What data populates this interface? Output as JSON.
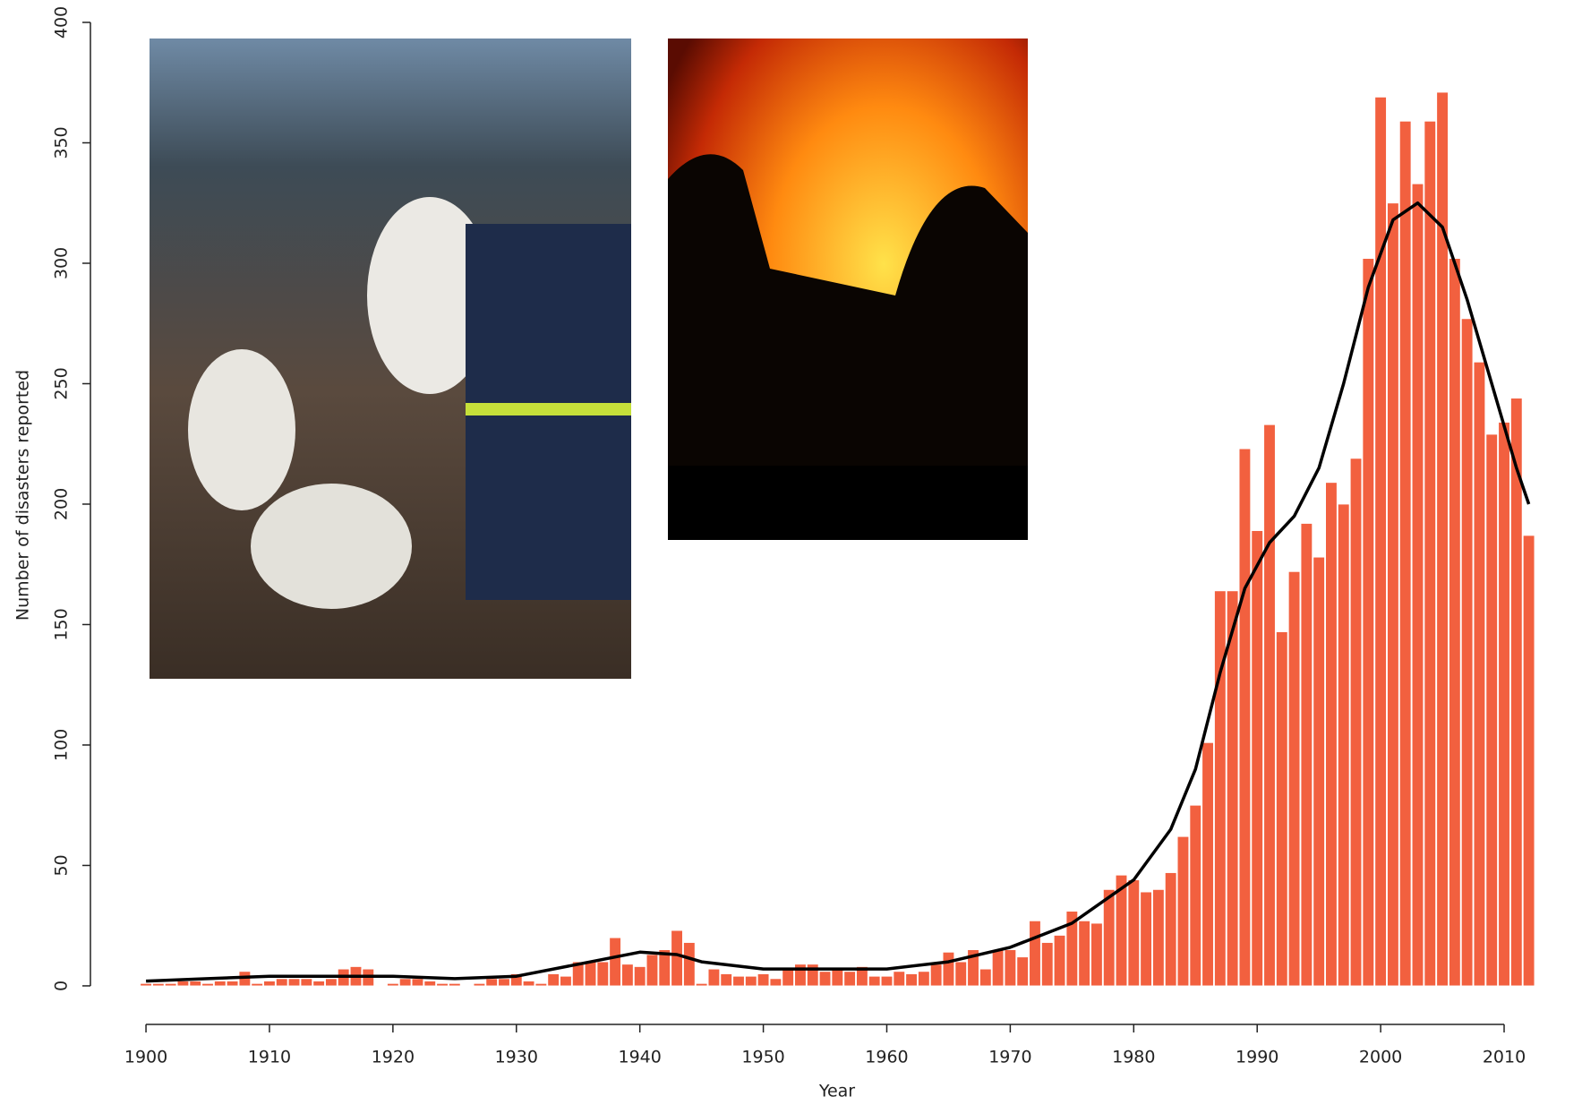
{
  "chart_data": {
    "type": "bar",
    "xlabel": "Year",
    "ylabel": "Number of disasters reported",
    "color": "#f2603f",
    "x": [
      1900,
      1901,
      1902,
      1903,
      1904,
      1905,
      1906,
      1907,
      1908,
      1909,
      1910,
      1911,
      1912,
      1913,
      1914,
      1915,
      1916,
      1917,
      1918,
      1919,
      1920,
      1921,
      1922,
      1923,
      1924,
      1925,
      1926,
      1927,
      1928,
      1929,
      1930,
      1931,
      1932,
      1933,
      1934,
      1935,
      1936,
      1937,
      1938,
      1939,
      1940,
      1941,
      1942,
      1943,
      1944,
      1945,
      1946,
      1947,
      1948,
      1949,
      1950,
      1951,
      1952,
      1953,
      1954,
      1955,
      1956,
      1957,
      1958,
      1959,
      1960,
      1961,
      1962,
      1963,
      1964,
      1965,
      1966,
      1967,
      1968,
      1969,
      1970,
      1971,
      1972,
      1973,
      1974,
      1975,
      1976,
      1977,
      1978,
      1979,
      1980,
      1981,
      1982,
      1983,
      1984,
      1985,
      1986,
      1987,
      1988,
      1989,
      1990,
      1991,
      1992,
      1993,
      1994,
      1995,
      1996,
      1997,
      1998,
      1999,
      2000,
      2001,
      2002,
      2003,
      2004,
      2005,
      2006,
      2007,
      2008,
      2009,
      2010,
      2011,
      2012
    ],
    "values": [
      1,
      1,
      1,
      2,
      2,
      1,
      2,
      2,
      6,
      1,
      2,
      3,
      3,
      3,
      2,
      3,
      7,
      8,
      7,
      0,
      1,
      3,
      3,
      2,
      1,
      1,
      0,
      1,
      3,
      3,
      5,
      2,
      1,
      5,
      4,
      10,
      10,
      10,
      20,
      9,
      8,
      13,
      15,
      23,
      18,
      1,
      7,
      5,
      4,
      4,
      5,
      3,
      7,
      9,
      9,
      6,
      7,
      6,
      8,
      4,
      4,
      6,
      5,
      6,
      9,
      14,
      10,
      15,
      7,
      15,
      15,
      12,
      27,
      18,
      21,
      31,
      27,
      26,
      40,
      46,
      44,
      39,
      40,
      47,
      62,
      75,
      101,
      164,
      164,
      223,
      189,
      233,
      147,
      172,
      192,
      178,
      209,
      200,
      219,
      302,
      369,
      325,
      359,
      333,
      359,
      371,
      302,
      277,
      259,
      229,
      234,
      244,
      187
    ],
    "smooth": {
      "color": "#000000",
      "x": [
        1900,
        1905,
        1910,
        1915,
        1920,
        1925,
        1930,
        1935,
        1940,
        1943,
        1945,
        1950,
        1955,
        1960,
        1965,
        1970,
        1975,
        1980,
        1983,
        1985,
        1987,
        1989,
        1991,
        1993,
        1995,
        1997,
        1999,
        2001,
        2003,
        2005,
        2007,
        2009,
        2011,
        2012
      ],
      "values": [
        2,
        3,
        4,
        4,
        4,
        3,
        4,
        9,
        14,
        13,
        10,
        7,
        7,
        7,
        10,
        16,
        26,
        44,
        65,
        90,
        130,
        165,
        184,
        195,
        215,
        250,
        290,
        318,
        325,
        315,
        285,
        250,
        215,
        200
      ]
    },
    "xlim": [
      1895.5,
      2015.8
    ],
    "xticks": [
      1900,
      1910,
      1920,
      1930,
      1940,
      1950,
      1960,
      1970,
      1980,
      1990,
      2000,
      2010
    ],
    "ylim": [
      -16,
      400
    ],
    "yticks": [
      0,
      50,
      100,
      150,
      200,
      250,
      300,
      350,
      400
    ]
  }
}
